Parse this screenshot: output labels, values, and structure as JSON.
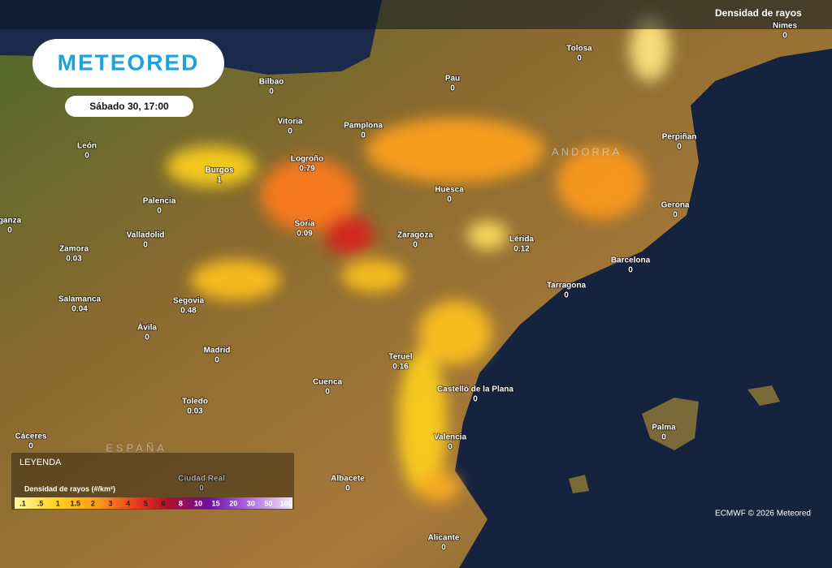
{
  "header": {
    "brand": "METEORED",
    "datetime": "Sábado 30, 17:00",
    "layer": "Densidad de rayos"
  },
  "map": {
    "country": "ESPAÑA",
    "region": "ANDORRA",
    "cities": [
      {
        "name": "Nimes",
        "value": 0
      },
      {
        "name": "Tolosa",
        "value": 0
      },
      {
        "name": "Bilbao",
        "value": 0
      },
      {
        "name": "Pau",
        "value": 0
      },
      {
        "name": "Vitoria",
        "value": 0
      },
      {
        "name": "Pamplona",
        "value": 0
      },
      {
        "name": "León",
        "value": 0
      },
      {
        "name": "Perpiñan",
        "value": 0
      },
      {
        "name": "Logroño",
        "value": 0.79
      },
      {
        "name": "Burgos",
        "value": 1
      },
      {
        "name": "Huesca",
        "value": 0
      },
      {
        "name": "Gerona",
        "value": 0
      },
      {
        "name": "Palencia",
        "value": 0
      },
      {
        "name": "Soria",
        "value": 0.09
      },
      {
        "name": "Zaragoza",
        "value": 0
      },
      {
        "name": "Lérida",
        "value": 0.12
      },
      {
        "name": "Valladolid",
        "value": 0
      },
      {
        "name": "Zamora",
        "value": 0.03
      },
      {
        "name": "ganza",
        "value": 0
      },
      {
        "name": "Barcelona",
        "value": 0
      },
      {
        "name": "Tarragona",
        "value": 0
      },
      {
        "name": "Salamanca",
        "value": 0.04
      },
      {
        "name": "Segovia",
        "value": 0.48
      },
      {
        "name": "Ávila",
        "value": 0
      },
      {
        "name": "Madrid",
        "value": 0
      },
      {
        "name": "Teruel",
        "value": 0.16
      },
      {
        "name": "Cuenca",
        "value": 0
      },
      {
        "name": "Castelló de la Plana",
        "value": 0
      },
      {
        "name": "Toledo",
        "value": 0.03
      },
      {
        "name": "Palma",
        "value": 0
      },
      {
        "name": "Cáceres",
        "value": 0
      },
      {
        "name": "Valencia",
        "value": 0
      },
      {
        "name": "Ciudad Real",
        "value": 0
      },
      {
        "name": "Albacete",
        "value": 0
      },
      {
        "name": "Alicante",
        "value": 0
      }
    ]
  },
  "legend": {
    "heading": "LEYENDA",
    "title": "Densidad de rayos (#/km²)",
    "ticks": [
      ".1",
      ".5",
      "1",
      "1.5",
      "2",
      "3",
      "4",
      "5",
      "6",
      "8",
      "10",
      "15",
      "20",
      "30",
      "50",
      "100"
    ]
  },
  "credit": "ECMWF © 2026 Meteored"
}
